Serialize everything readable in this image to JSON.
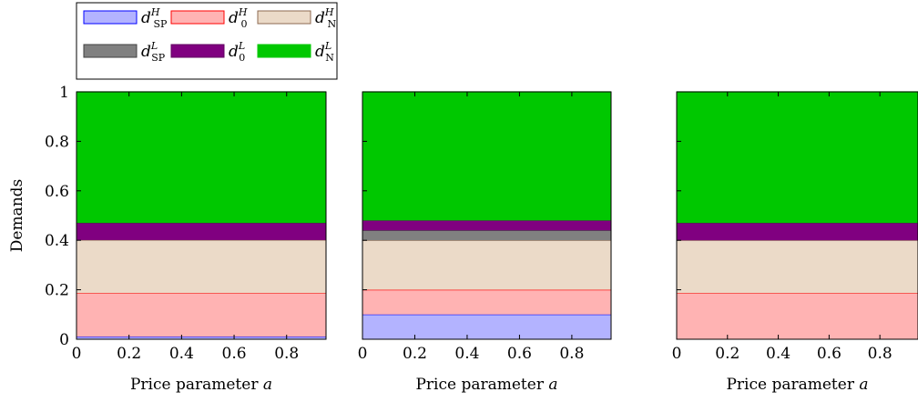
{
  "chart_data": [
    {
      "type": "area",
      "stacked": true,
      "x": [
        0,
        0.2,
        0.4,
        0.6,
        0.8
      ],
      "xlim": [
        0,
        0.95
      ],
      "ylim": [
        0,
        1
      ],
      "xlabel": "Price parameter a",
      "ylabel": "Demands",
      "xticks": [
        "0",
        "0.2",
        "0.4",
        "0.6",
        "0.8"
      ],
      "yticks": [
        "0",
        "0.2",
        "0.4",
        "0.6",
        "0.8",
        "1"
      ],
      "layers": [
        {
          "key": "sp_h",
          "value": 0.01
        },
        {
          "key": "zero_h",
          "value": 0.176
        },
        {
          "key": "n_h",
          "value": 0.215
        },
        {
          "key": "sp_l",
          "value": 0.0
        },
        {
          "key": "zero_l",
          "value": 0.069
        },
        {
          "key": "n_l",
          "value": 0.53
        }
      ]
    },
    {
      "type": "area",
      "stacked": true,
      "x": [
        0,
        0.2,
        0.4,
        0.6,
        0.8
      ],
      "xlim": [
        0,
        0.95
      ],
      "ylim": [
        0,
        1
      ],
      "xlabel": "Price parameter a",
      "ylabel": "",
      "xticks": [
        "0",
        "0.2",
        "0.4",
        "0.6",
        "0.8"
      ],
      "yticks": [],
      "layers": [
        {
          "key": "sp_h",
          "value": 0.1
        },
        {
          "key": "zero_h",
          "value": 0.1
        },
        {
          "key": "n_h",
          "value": 0.2
        },
        {
          "key": "sp_l",
          "value": 0.04
        },
        {
          "key": "zero_l",
          "value": 0.04
        },
        {
          "key": "n_l",
          "value": 0.52
        }
      ]
    },
    {
      "type": "area",
      "stacked": true,
      "x": [
        0,
        0.2,
        0.4,
        0.6,
        0.8
      ],
      "xlim": [
        0,
        0.95
      ],
      "ylim": [
        0,
        1
      ],
      "xlabel": "Price parameter a",
      "ylabel": "",
      "xticks": [
        "0",
        "0.2",
        "0.4",
        "0.6",
        "0.8"
      ],
      "yticks": [],
      "layers": [
        {
          "key": "sp_h",
          "value": 0.0
        },
        {
          "key": "zero_h",
          "value": 0.186
        },
        {
          "key": "n_h",
          "value": 0.214
        },
        {
          "key": "sp_l",
          "value": 0.0
        },
        {
          "key": "zero_l",
          "value": 0.07
        },
        {
          "key": "n_l",
          "value": 0.53
        }
      ]
    }
  ],
  "legend": {
    "placement": "top-left",
    "entries": [
      {
        "key": "sp_h",
        "base": "d",
        "sub": "SP",
        "sup": "H",
        "fill": "#b3b3ff",
        "stroke": "#0000ff"
      },
      {
        "key": "zero_h",
        "base": "d",
        "sub": "0",
        "sup": "H",
        "fill": "#ffb3b3",
        "stroke": "#ff0000"
      },
      {
        "key": "n_h",
        "base": "d",
        "sub": "N",
        "sup": "H",
        "fill": "#ebdac8",
        "stroke": "#8c6a50"
      },
      {
        "key": "sp_l",
        "base": "d",
        "sub": "SP",
        "sup": "L",
        "fill": "#808080",
        "stroke": "#404040"
      },
      {
        "key": "zero_l",
        "base": "d",
        "sub": "0",
        "sup": "L",
        "fill": "#800080",
        "stroke": "#600060"
      },
      {
        "key": "n_l",
        "base": "d",
        "sub": "N",
        "sup": "L",
        "fill": "#00c800",
        "stroke": "#00c800"
      }
    ]
  }
}
